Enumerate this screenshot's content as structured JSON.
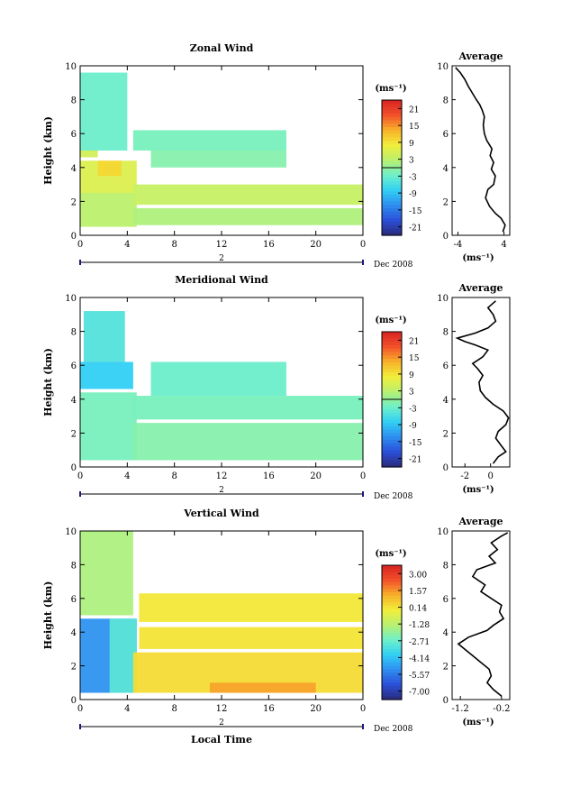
{
  "chart_data": [
    {
      "type": "heatmap",
      "title": "Zonal Wind",
      "ylabel": "Height (km)",
      "ylim": [
        0,
        10
      ],
      "y_ticks": [
        "0",
        "2",
        "4",
        "6",
        "8",
        "10"
      ],
      "x_ticks": [
        "0",
        "4",
        "8",
        "12",
        "16",
        "20",
        "0"
      ],
      "xlim": [
        0,
        24
      ],
      "date_marker": "2",
      "date_label": "Dec 2008",
      "colorbar": {
        "unit": "(ms⁻¹)",
        "ticks": [
          "21",
          "15",
          "9",
          "3",
          "-3",
          "-9",
          "-15",
          "-21"
        ],
        "range": [
          -24,
          24
        ]
      },
      "field": [
        {
          "x0": 0,
          "x1": 4,
          "y0": 5,
          "y1": 9.6,
          "v": -3
        },
        {
          "x0": 0,
          "x1": 1.5,
          "y0": 4.6,
          "y1": 5.0,
          "v": 5
        },
        {
          "x0": 0,
          "x1": 4.8,
          "y0": 2.5,
          "y1": 4.4,
          "v": 6
        },
        {
          "x0": 1.5,
          "x1": 3.5,
          "y0": 3.5,
          "y1": 4.4,
          "v": 10
        },
        {
          "x0": 0,
          "x1": 4.8,
          "y0": 0.5,
          "y1": 2.5,
          "v": 3
        },
        {
          "x0": 4.5,
          "x1": 17.5,
          "y0": 5.0,
          "y1": 6.2,
          "v": -2
        },
        {
          "x0": 6,
          "x1": 17.5,
          "y0": 4.0,
          "y1": 5.0,
          "v": -1
        },
        {
          "x0": 4.5,
          "x1": 24,
          "y0": 1.8,
          "y1": 3.0,
          "v": 4
        },
        {
          "x0": 4.5,
          "x1": 24,
          "y0": 0.6,
          "y1": 1.6,
          "v": 2
        }
      ],
      "average_profile": {
        "title": "Average",
        "xlabel": "(ms⁻¹)",
        "x_ticks": [
          "-4",
          "4"
        ],
        "xlim": [
          -5,
          5
        ],
        "y_ticks": [
          "0",
          "2",
          "4",
          "6",
          "8",
          "10"
        ],
        "ylim": [
          0,
          10
        ],
        "points": [
          [
            3.8,
            0.2
          ],
          [
            4.2,
            0.6
          ],
          [
            3.5,
            1.0
          ],
          [
            2.5,
            1.3
          ],
          [
            1.5,
            1.7
          ],
          [
            0.8,
            2.2
          ],
          [
            1.2,
            2.7
          ],
          [
            2.2,
            3.0
          ],
          [
            2.5,
            3.5
          ],
          [
            1.8,
            3.9
          ],
          [
            2.2,
            4.3
          ],
          [
            1.6,
            4.7
          ],
          [
            1.9,
            5.1
          ],
          [
            1.0,
            5.6
          ],
          [
            0.6,
            6.0
          ],
          [
            0.4,
            6.5
          ],
          [
            0.6,
            7.0
          ],
          [
            0.2,
            7.4
          ],
          [
            -0.2,
            7.7
          ],
          [
            -0.8,
            8.0
          ],
          [
            -1.5,
            8.4
          ],
          [
            -2.2,
            8.8
          ],
          [
            -2.8,
            9.2
          ],
          [
            -3.6,
            9.6
          ],
          [
            -4.4,
            9.9
          ]
        ]
      }
    },
    {
      "type": "heatmap",
      "title": "Meridional Wind",
      "ylabel": "Height (km)",
      "ylim": [
        0,
        10
      ],
      "y_ticks": [
        "0",
        "2",
        "4",
        "6",
        "8",
        "10"
      ],
      "x_ticks": [
        "0",
        "4",
        "8",
        "12",
        "16",
        "20",
        "0"
      ],
      "xlim": [
        0,
        24
      ],
      "date_marker": "2",
      "date_label": "Dec 2008",
      "colorbar": {
        "unit": "(ms⁻¹)",
        "ticks": [
          "21",
          "15",
          "9",
          "3",
          "-3",
          "-9",
          "-15",
          "-21"
        ],
        "range": [
          -24,
          24
        ]
      },
      "field": [
        {
          "x0": 0.3,
          "x1": 3.8,
          "y0": 6.2,
          "y1": 9.2,
          "v": -5
        },
        {
          "x0": 0,
          "x1": 4.5,
          "y0": 4.6,
          "y1": 6.2,
          "v": -8
        },
        {
          "x0": 0,
          "x1": 4.8,
          "y0": 0.4,
          "y1": 4.4,
          "v": -2
        },
        {
          "x0": 6,
          "x1": 17.5,
          "y0": 4.2,
          "y1": 6.2,
          "v": -3
        },
        {
          "x0": 4.5,
          "x1": 24,
          "y0": 2.8,
          "y1": 4.2,
          "v": -2
        },
        {
          "x0": 4.5,
          "x1": 24,
          "y0": 0.4,
          "y1": 2.6,
          "v": -1
        }
      ],
      "average_profile": {
        "title": "Average",
        "xlabel": "(ms⁻¹)",
        "x_ticks": [
          "-2",
          "0"
        ],
        "xlim": [
          -3,
          1.5
        ],
        "y_ticks": [
          "0",
          "2",
          "4",
          "6",
          "8",
          "10"
        ],
        "ylim": [
          0,
          10
        ],
        "points": [
          [
            0.2,
            0.2
          ],
          [
            0.6,
            0.6
          ],
          [
            1.2,
            0.9
          ],
          [
            0.8,
            1.3
          ],
          [
            0.4,
            1.7
          ],
          [
            0.6,
            2.1
          ],
          [
            1.2,
            2.5
          ],
          [
            1.4,
            2.9
          ],
          [
            1.0,
            3.3
          ],
          [
            0.2,
            3.7
          ],
          [
            -0.4,
            4.1
          ],
          [
            -0.8,
            4.5
          ],
          [
            -0.9,
            5.0
          ],
          [
            -0.6,
            5.4
          ],
          [
            -1.0,
            5.8
          ],
          [
            -1.4,
            6.1
          ],
          [
            -0.6,
            6.5
          ],
          [
            -0.2,
            6.9
          ],
          [
            -1.2,
            7.2
          ],
          [
            -2.0,
            7.4
          ],
          [
            -2.6,
            7.6
          ],
          [
            -1.2,
            7.9
          ],
          [
            -0.2,
            8.2
          ],
          [
            0.4,
            8.6
          ],
          [
            0.2,
            9.0
          ],
          [
            -0.2,
            9.4
          ],
          [
            0.4,
            9.8
          ]
        ]
      }
    },
    {
      "type": "heatmap",
      "title": "Vertical Wind",
      "ylabel": "Height (km)",
      "xlabel": "Local Time",
      "ylim": [
        0,
        10
      ],
      "y_ticks": [
        "0",
        "2",
        "4",
        "6",
        "8",
        "10"
      ],
      "x_ticks": [
        "0",
        "4",
        "8",
        "12",
        "16",
        "20",
        "0"
      ],
      "xlim": [
        0,
        24
      ],
      "date_marker": "2",
      "date_label": "Dec 2008",
      "colorbar": {
        "unit": "(ms⁻¹)",
        "ticks": [
          "3.00",
          "1.57",
          "0.14",
          "-1.28",
          "-2.71",
          "-4.14",
          "-5.57",
          "-7.00"
        ],
        "range": [
          -8.5,
          4.5
        ]
      },
      "field": [
        {
          "x0": 0,
          "x1": 4.5,
          "y0": 5.0,
          "y1": 10,
          "v": -1.5
        },
        {
          "x0": 0,
          "x1": 4.8,
          "y0": 0.4,
          "y1": 4.8,
          "v": -5.5
        },
        {
          "x0": 2.5,
          "x1": 4.8,
          "y0": 0.4,
          "y1": 4.8,
          "v": -3.2
        },
        {
          "x0": 5,
          "x1": 24,
          "y0": 4.6,
          "y1": 6.3,
          "v": 0.3
        },
        {
          "x0": 5,
          "x1": 24,
          "y0": 3.0,
          "y1": 4.3,
          "v": 0.4
        },
        {
          "x0": 4.5,
          "x1": 24,
          "y0": 0.4,
          "y1": 2.8,
          "v": 0.6
        },
        {
          "x0": 11,
          "x1": 20,
          "y0": 0.4,
          "y1": 1.0,
          "v": 1.8
        }
      ],
      "average_profile": {
        "title": "Average",
        "xlabel": "(ms⁻¹)",
        "x_ticks": [
          "-1.2",
          "-0.2"
        ],
        "xlim": [
          -1.4,
          0
        ],
        "y_ticks": [
          "0",
          "2",
          "4",
          "6",
          "8",
          "10"
        ],
        "ylim": [
          0,
          10
        ],
        "points": [
          [
            -0.2,
            0.2
          ],
          [
            -0.4,
            0.6
          ],
          [
            -0.55,
            1.0
          ],
          [
            -0.45,
            1.4
          ],
          [
            -0.5,
            1.8
          ],
          [
            -0.7,
            2.2
          ],
          [
            -0.9,
            2.6
          ],
          [
            -1.1,
            3.0
          ],
          [
            -1.25,
            3.3
          ],
          [
            -1.0,
            3.7
          ],
          [
            -0.55,
            4.1
          ],
          [
            -0.4,
            4.4
          ],
          [
            -0.15,
            4.8
          ],
          [
            -0.25,
            5.2
          ],
          [
            -0.2,
            5.6
          ],
          [
            -0.45,
            6.0
          ],
          [
            -0.7,
            6.4
          ],
          [
            -0.6,
            6.8
          ],
          [
            -0.9,
            7.3
          ],
          [
            -0.8,
            7.7
          ],
          [
            -0.35,
            8.1
          ],
          [
            -0.5,
            8.5
          ],
          [
            -0.3,
            8.9
          ],
          [
            -0.45,
            9.3
          ],
          [
            -0.2,
            9.7
          ],
          [
            -0.05,
            9.9
          ]
        ]
      }
    }
  ]
}
